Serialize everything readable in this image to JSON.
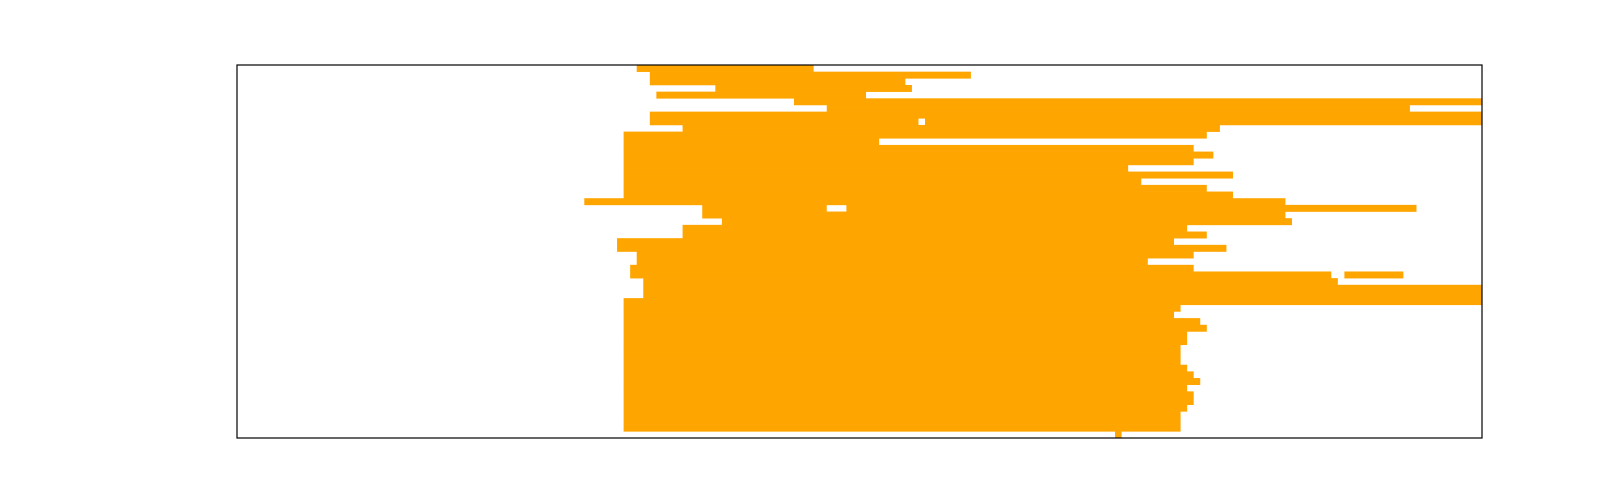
{
  "chart_data": {
    "type": "heatmap",
    "title": "",
    "xlabel": "",
    "ylabel": "",
    "grid": false,
    "legend": "none",
    "color": "#ffa500",
    "background": "#ffffff",
    "n_cols": 190,
    "n_rows": 56,
    "rows": [
      [
        [
          61,
          88
        ]
      ],
      [
        [
          63,
          112
        ]
      ],
      [
        [
          63,
          102
        ]
      ],
      [
        [
          73,
          103
        ]
      ],
      [
        [
          64,
          96
        ]
      ],
      [
        [
          85,
          190
        ]
      ],
      [
        [
          90,
          179
        ]
      ],
      [
        [
          63,
          190
        ]
      ],
      [
        [
          63,
          104
        ],
        [
          105,
          190
        ]
      ],
      [
        [
          68,
          150
        ]
      ],
      [
        [
          59,
          148
        ]
      ],
      [
        [
          59,
          98
        ]
      ],
      [
        [
          59,
          146
        ]
      ],
      [
        [
          59,
          149
        ]
      ],
      [
        [
          59,
          146
        ]
      ],
      [
        [
          59,
          136
        ]
      ],
      [
        [
          59,
          152
        ]
      ],
      [
        [
          59,
          138
        ]
      ],
      [
        [
          59,
          148
        ]
      ],
      [
        [
          59,
          152
        ]
      ],
      [
        [
          53,
          160
        ]
      ],
      [
        [
          71,
          90
        ],
        [
          93,
          180
        ]
      ],
      [
        [
          71,
          160
        ]
      ],
      [
        [
          74,
          161
        ]
      ],
      [
        [
          68,
          145
        ]
      ],
      [
        [
          68,
          148
        ]
      ],
      [
        [
          58,
          143
        ]
      ],
      [
        [
          58,
          151
        ]
      ],
      [
        [
          61,
          146
        ]
      ],
      [
        [
          61,
          139
        ]
      ],
      [
        [
          60,
          146
        ]
      ],
      [
        [
          60,
          167
        ],
        [
          169,
          178
        ]
      ],
      [
        [
          62,
          168
        ]
      ],
      [
        [
          62,
          190
        ]
      ],
      [
        [
          62,
          190
        ]
      ],
      [
        [
          59,
          190
        ]
      ],
      [
        [
          59,
          144
        ]
      ],
      [
        [
          59,
          143
        ]
      ],
      [
        [
          59,
          147
        ]
      ],
      [
        [
          59,
          148
        ]
      ],
      [
        [
          59,
          145
        ]
      ],
      [
        [
          59,
          145
        ]
      ],
      [
        [
          59,
          144
        ]
      ],
      [
        [
          59,
          144
        ]
      ],
      [
        [
          59,
          144
        ]
      ],
      [
        [
          59,
          145
        ]
      ],
      [
        [
          59,
          146
        ]
      ],
      [
        [
          59,
          147
        ]
      ],
      [
        [
          59,
          145
        ]
      ],
      [
        [
          59,
          146
        ]
      ],
      [
        [
          59,
          146
        ]
      ],
      [
        [
          59,
          145
        ]
      ],
      [
        [
          59,
          144
        ]
      ],
      [
        [
          59,
          144
        ]
      ],
      [
        [
          59,
          144
        ]
      ],
      [
        [
          134,
          135
        ]
      ]
    ]
  }
}
